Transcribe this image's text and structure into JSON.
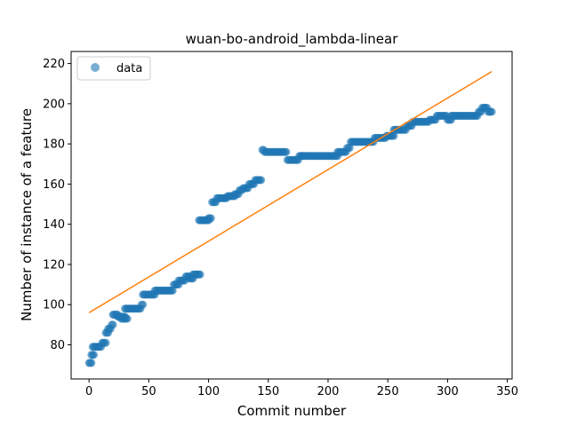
{
  "chart_data": {
    "type": "scatter",
    "title": "wuan-bo-android_lambda-linear",
    "xlabel": "Commit number",
    "ylabel": "Number of instance of a feature",
    "xlim": [
      -15,
      354
    ],
    "ylim": [
      63,
      226
    ],
    "xticks": [
      0,
      50,
      100,
      150,
      200,
      250,
      300,
      350
    ],
    "yticks": [
      80,
      100,
      120,
      140,
      160,
      180,
      200,
      220
    ],
    "grid": false,
    "legend_position": "top-left",
    "colors": {
      "data": "#1f77b4",
      "fit": "#ff7f0e"
    },
    "series": [
      {
        "name": "data",
        "kind": "scatter",
        "segments": [
          [
            0,
            2,
            71
          ],
          [
            2,
            4,
            75
          ],
          [
            3,
            10,
            79
          ],
          [
            11,
            14,
            81
          ],
          [
            14,
            16,
            86
          ],
          [
            16,
            18,
            88
          ],
          [
            19,
            20,
            90
          ],
          [
            20,
            24,
            95
          ],
          [
            24,
            30,
            94
          ],
          [
            27,
            32,
            93
          ],
          [
            30,
            43,
            98
          ],
          [
            44,
            45,
            100
          ],
          [
            45,
            55,
            105
          ],
          [
            55,
            70,
            107
          ],
          [
            71,
            75,
            110
          ],
          [
            75,
            80,
            112
          ],
          [
            81,
            84,
            114
          ],
          [
            84,
            87,
            113
          ],
          [
            87,
            93,
            115
          ],
          [
            92,
            100,
            142
          ],
          [
            100,
            102,
            143
          ],
          [
            103,
            106,
            151
          ],
          [
            107,
            115,
            153
          ],
          [
            116,
            122,
            154
          ],
          [
            122,
            125,
            155
          ],
          [
            126,
            128,
            157
          ],
          [
            129,
            133,
            158
          ],
          [
            134,
            138,
            160
          ],
          [
            139,
            144,
            162
          ],
          [
            145,
            146,
            177
          ],
          [
            147,
            165,
            176
          ],
          [
            166,
            175,
            172
          ],
          [
            176,
            178,
            174
          ],
          [
            178,
            208,
            174
          ],
          [
            208,
            215,
            176
          ],
          [
            216,
            218,
            178
          ],
          [
            219,
            238,
            181
          ],
          [
            239,
            248,
            183
          ],
          [
            249,
            255,
            184
          ],
          [
            255,
            258,
            187
          ],
          [
            259,
            265,
            187
          ],
          [
            266,
            270,
            189
          ],
          [
            271,
            284,
            191
          ],
          [
            285,
            290,
            192
          ],
          [
            291,
            299,
            194
          ],
          [
            300,
            303,
            192
          ],
          [
            303,
            325,
            194
          ],
          [
            326,
            328,
            196
          ],
          [
            329,
            333,
            198
          ],
          [
            334,
            337,
            196
          ]
        ]
      },
      {
        "name": "",
        "kind": "line",
        "x": [
          0,
          337
        ],
        "y": [
          96,
          216
        ]
      }
    ]
  }
}
